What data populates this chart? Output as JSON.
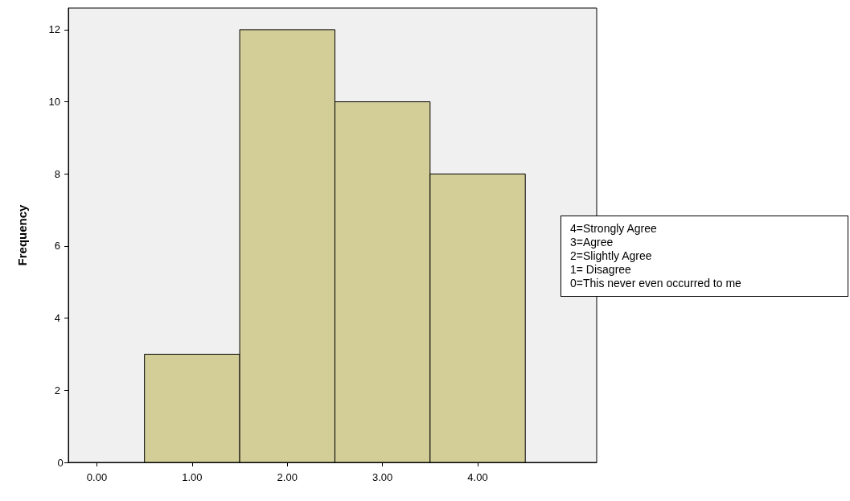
{
  "chart_data": {
    "type": "histogram",
    "ylabel": "Frequency",
    "bins": [
      -0.5,
      0.5,
      1.5,
      2.5,
      3.5,
      4.5
    ],
    "values": [
      0,
      3,
      12,
      10,
      8
    ],
    "color": "#d3ce98",
    "xlim": [
      -0.3,
      5.25
    ],
    "xticks": [
      {
        "value": 0,
        "label": "0.00"
      },
      {
        "value": 1,
        "label": "1.00"
      },
      {
        "value": 2,
        "label": "2.00"
      },
      {
        "value": 3,
        "label": "3.00"
      },
      {
        "value": 4,
        "label": "4.00"
      }
    ],
    "ylim": [
      0,
      12.6
    ],
    "yticks": [
      0,
      2,
      4,
      6,
      8,
      10,
      12
    ],
    "grid": false,
    "annotations": [
      "4=Strongly Agree",
      "3=Agree",
      "2=Slightly Agree",
      "1= Disagree",
      "0=This never even occurred to me"
    ]
  }
}
